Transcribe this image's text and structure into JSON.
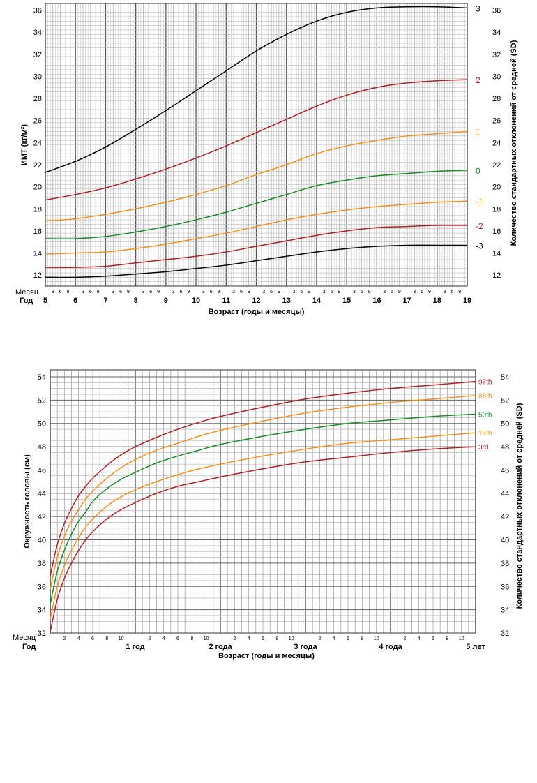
{
  "chart_data": [
    {
      "type": "line",
      "xlabel": "Возраст (годы и месяцы)",
      "ylabel": "ИМТ (кг/м²)",
      "ylabel_right": "Количество стандартных отклонений от средней (SD)",
      "row_label_month": "Месяц",
      "row_label_year": "Год",
      "month_ticks": [
        "3",
        "6",
        "9"
      ],
      "x_ticks": [
        "5",
        "6",
        "7",
        "8",
        "9",
        "10",
        "11",
        "12",
        "13",
        "14",
        "15",
        "16",
        "17",
        "18",
        "19"
      ],
      "xlim": [
        5,
        19
      ],
      "ylim": [
        11,
        36.6
      ],
      "y_ticks": [
        12,
        14,
        16,
        18,
        20,
        22,
        24,
        26,
        28,
        30,
        32,
        34,
        36
      ],
      "grid": true,
      "x": [
        5,
        6,
        7,
        8,
        9,
        10,
        11,
        12,
        13,
        14,
        15,
        16,
        17,
        18,
        19
      ],
      "series": [
        {
          "name": "3",
          "color": "#000000",
          "values": [
            21.3,
            22.3,
            23.6,
            25.2,
            26.9,
            28.7,
            30.5,
            32.3,
            33.8,
            35.0,
            35.8,
            36.2,
            36.3,
            36.3,
            36.2
          ]
        },
        {
          "name": "2",
          "color": "#b21f24",
          "values": [
            18.8,
            19.3,
            19.9,
            20.7,
            21.6,
            22.6,
            23.7,
            24.9,
            26.1,
            27.3,
            28.3,
            29.0,
            29.4,
            29.6,
            29.7
          ]
        },
        {
          "name": "1",
          "color": "#f5921e",
          "values": [
            16.9,
            17.1,
            17.5,
            18.0,
            18.6,
            19.3,
            20.1,
            21.1,
            22.0,
            23.0,
            23.7,
            24.2,
            24.6,
            24.8,
            25.0
          ]
        },
        {
          "name": "0",
          "color": "#1a8c2a",
          "values": [
            15.3,
            15.3,
            15.5,
            15.9,
            16.4,
            17.0,
            17.7,
            18.5,
            19.3,
            20.1,
            20.6,
            21.0,
            21.2,
            21.4,
            21.5
          ]
        },
        {
          "name": "-1",
          "color": "#f5921e",
          "values": [
            13.9,
            14.0,
            14.1,
            14.4,
            14.8,
            15.3,
            15.8,
            16.4,
            17.0,
            17.5,
            17.9,
            18.2,
            18.4,
            18.6,
            18.7
          ]
        },
        {
          "name": "-2",
          "color": "#b21f24",
          "values": [
            12.7,
            12.7,
            12.8,
            13.1,
            13.4,
            13.7,
            14.1,
            14.6,
            15.1,
            15.6,
            16.0,
            16.3,
            16.4,
            16.5,
            16.5
          ]
        },
        {
          "name": "-3",
          "color": "#000000",
          "values": [
            11.8,
            11.8,
            11.9,
            12.1,
            12.3,
            12.6,
            12.9,
            13.3,
            13.7,
            14.1,
            14.4,
            14.6,
            14.7,
            14.7,
            14.7
          ]
        }
      ]
    },
    {
      "type": "line",
      "xlabel": "Возраст (годы и месяцы)",
      "ylabel": "Окружность головы (см)",
      "ylabel_right": "Количество стандартных отклонений от средней (SD)",
      "row_label_month": "Месяц",
      "row_label_year": "Год",
      "month_ticks": [
        "2",
        "4",
        "6",
        "8",
        "10"
      ],
      "year_ticks": [
        "1 год",
        "2 года",
        "3 года",
        "4 года",
        "5 лет"
      ],
      "xlim": [
        0,
        60
      ],
      "ylim": [
        32,
        54.6
      ],
      "y_ticks": [
        32,
        34,
        36,
        38,
        40,
        42,
        44,
        46,
        48,
        50,
        52,
        54
      ],
      "grid": true,
      "x": [
        0,
        1,
        2,
        3,
        4,
        5,
        6,
        8,
        10,
        12,
        15,
        18,
        21,
        24,
        30,
        36,
        42,
        48,
        54,
        60
      ],
      "series": [
        {
          "name": "97th",
          "color": "#b21f24",
          "values": [
            36.9,
            39.6,
            41.4,
            42.7,
            43.8,
            44.6,
            45.3,
            46.4,
            47.3,
            48.0,
            48.8,
            49.5,
            50.1,
            50.6,
            51.4,
            52.1,
            52.6,
            53.0,
            53.3,
            53.6
          ]
        },
        {
          "name": "85th",
          "color": "#f5921e",
          "values": [
            35.8,
            38.5,
            40.3,
            41.6,
            42.6,
            43.5,
            44.2,
            45.3,
            46.2,
            46.9,
            47.7,
            48.3,
            48.9,
            49.4,
            50.2,
            50.9,
            51.4,
            51.8,
            52.1,
            52.4
          ]
        },
        {
          "name": "50th",
          "color": "#1a8c2a",
          "values": [
            34.5,
            37.3,
            39.1,
            40.5,
            41.6,
            42.4,
            43.3,
            44.4,
            45.2,
            45.8,
            46.6,
            47.2,
            47.7,
            48.2,
            48.9,
            49.5,
            50.0,
            50.3,
            50.6,
            50.8
          ]
        },
        {
          "name": "15th",
          "color": "#f5921e",
          "values": [
            33.2,
            36.0,
            37.8,
            39.1,
            40.2,
            41.1,
            41.8,
            42.9,
            43.7,
            44.3,
            45.0,
            45.6,
            46.1,
            46.5,
            47.2,
            47.8,
            48.3,
            48.6,
            48.9,
            49.2
          ]
        },
        {
          "name": "3rd",
          "color": "#b21f24",
          "values": [
            32.1,
            34.9,
            36.7,
            38.0,
            39.1,
            40.0,
            40.7,
            41.8,
            42.6,
            43.2,
            44.0,
            44.6,
            45.0,
            45.4,
            46.1,
            46.7,
            47.1,
            47.5,
            47.8,
            48.0
          ]
        }
      ]
    }
  ]
}
